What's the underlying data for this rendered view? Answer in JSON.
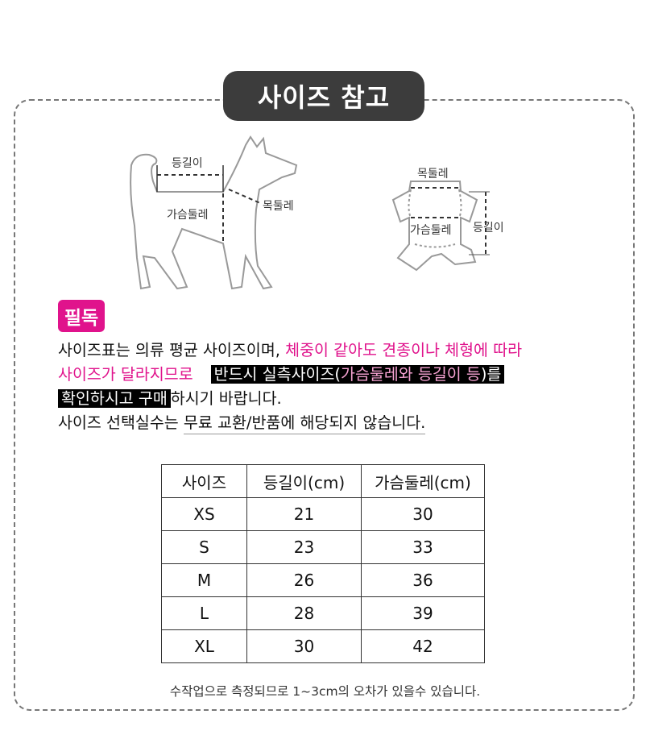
{
  "title": "사이즈 참고",
  "diagram": {
    "dog_labels": {
      "back": "등길이",
      "chest": "가슴둘레",
      "neck": "목둘레"
    },
    "garment_labels": {
      "neck": "목둘레",
      "chest": "가슴둘레",
      "back": "등길이"
    }
  },
  "notice": {
    "badge": "필독",
    "line1_black": "사이즈표는 의류 평균 사이즈이며, ",
    "line1_pink": "체중이 같아도 견종이나 체형에 따라",
    "line2_pink": "사이즈가 달라지므로",
    "line2_box_a": "반드시 실측사이즈(",
    "line2_box_pink": "가슴둘레와 등길이 등",
    "line2_box_b": ")를",
    "line3_box": " 확인하시고 구매",
    "line3_rest": "하시기 바랍니다.",
    "line4_a": "사이즈 선택실수는 ",
    "line4_ul": "무료 교환/반품에 해당되지 않습니다."
  },
  "table": {
    "headers": [
      "사이즈",
      "등길이(cm)",
      "가슴둘레(cm)"
    ],
    "rows": [
      [
        "XS",
        "21",
        "30"
      ],
      [
        "S",
        "23",
        "33"
      ],
      [
        "M",
        "26",
        "36"
      ],
      [
        "L",
        "28",
        "39"
      ],
      [
        "XL",
        "30",
        "42"
      ]
    ]
  },
  "footnote": "수작업으로 측정되므로 1~3cm의 오차가 있을수 있습니다.",
  "colors": {
    "accent": "#e0138c",
    "title_bg": "#3c3c3c"
  }
}
